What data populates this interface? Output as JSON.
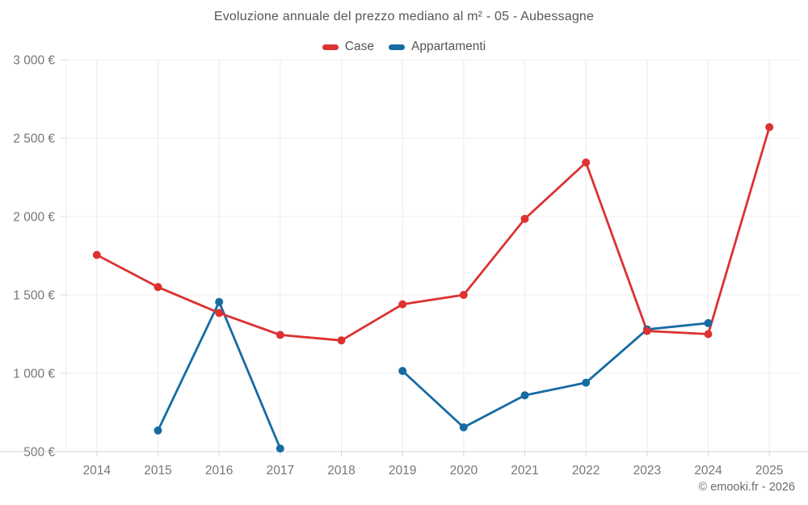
{
  "title": "Evoluzione annuale del prezzo mediano al m² - 05 - Aubessagne",
  "footer": "© emooki.fr - 2026",
  "legend": [
    {
      "label": "Case",
      "color": "#dc3232"
    },
    {
      "label": "Appartamenti",
      "color": "#166ba3"
    }
  ],
  "colors": {
    "case": "#dc3232",
    "appartamenti": "#166ba3",
    "grid": "#ececec",
    "axis": "#d6d6d6",
    "axis_text": "#767676",
    "title_text": "#565656"
  },
  "chart_data": {
    "type": "line",
    "x": [
      "2014",
      "2015",
      "2016",
      "2017",
      "2018",
      "2019",
      "2020",
      "2021",
      "2022",
      "2023",
      "2024",
      "2025"
    ],
    "series": [
      {
        "name": "Case",
        "color": "#dc3232",
        "values": [
          1755,
          1550,
          1385,
          1245,
          1210,
          1440,
          1500,
          1985,
          2345,
          1270,
          1250,
          2570
        ]
      },
      {
        "name": "Appartamenti",
        "color": "#166ba3",
        "values": [
          null,
          635,
          1455,
          520,
          null,
          1015,
          655,
          860,
          940,
          1280,
          1320,
          null
        ]
      }
    ],
    "title": "Evoluzione annuale del prezzo mediano al m² - 05 - Aubessagne",
    "xlabel": "",
    "ylabel": "",
    "y_unit": "€",
    "ylim": [
      500,
      3000
    ],
    "y_ticks": [
      {
        "value": 3000,
        "label": "3 000 €"
      },
      {
        "value": 2500,
        "label": "2 500 €"
      },
      {
        "value": 2000,
        "label": "2 000 €"
      },
      {
        "value": 1500,
        "label": "1 500 €"
      },
      {
        "value": 1000,
        "label": "1 000 €"
      },
      {
        "value": 500,
        "label": "500 €"
      }
    ],
    "grid": true,
    "legend_position": "top"
  }
}
